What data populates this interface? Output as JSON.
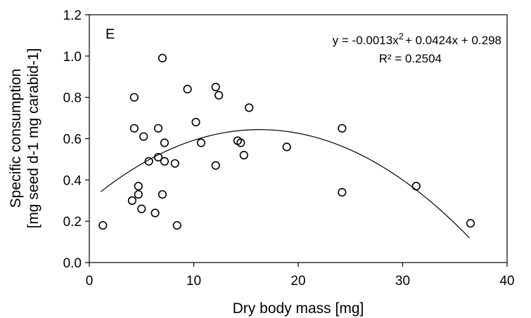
{
  "chart_data": {
    "type": "scatter",
    "panel_label": "E",
    "xlabel": "Dry body mass [mg]",
    "ylabel_line1": "Specific consumption",
    "ylabel_line2": "[mg seed d-1 mg carabid-1]",
    "xlim": [
      0,
      40
    ],
    "ylim": [
      0,
      1.2
    ],
    "xticks": [
      0,
      10,
      20,
      30,
      40
    ],
    "yticks": [
      0.0,
      0.2,
      0.4,
      0.6,
      0.8,
      1.0,
      1.2
    ],
    "xtick_labels": [
      "0",
      "10",
      "20",
      "30",
      "40"
    ],
    "ytick_labels": [
      "0.0",
      "0.2",
      "0.4",
      "0.6",
      "0.8",
      "1.0",
      "1.2"
    ],
    "grid": false,
    "equation_prefix": "y = -0.0013x",
    "equation_exponent": "2",
    "equation_suffix": "+ 0.0424x + 0.298",
    "r_squared": "R² = 0.2504",
    "trendline": {
      "a": -0.0013,
      "b": 0.0424,
      "c": 0.298,
      "x_range": [
        1.1,
        36.4
      ]
    },
    "points": [
      {
        "x": 1.3,
        "y": 0.18
      },
      {
        "x": 4.1,
        "y": 0.3
      },
      {
        "x": 4.3,
        "y": 0.8
      },
      {
        "x": 4.3,
        "y": 0.65
      },
      {
        "x": 4.7,
        "y": 0.33
      },
      {
        "x": 4.7,
        "y": 0.37
      },
      {
        "x": 5.0,
        "y": 0.26
      },
      {
        "x": 5.2,
        "y": 0.61
      },
      {
        "x": 5.7,
        "y": 0.49
      },
      {
        "x": 6.3,
        "y": 0.24
      },
      {
        "x": 6.6,
        "y": 0.65
      },
      {
        "x": 6.6,
        "y": 0.51
      },
      {
        "x": 7.0,
        "y": 0.99
      },
      {
        "x": 7.0,
        "y": 0.33
      },
      {
        "x": 7.2,
        "y": 0.58
      },
      {
        "x": 7.2,
        "y": 0.49
      },
      {
        "x": 8.2,
        "y": 0.48
      },
      {
        "x": 8.4,
        "y": 0.18
      },
      {
        "x": 9.4,
        "y": 0.84
      },
      {
        "x": 10.2,
        "y": 0.68
      },
      {
        "x": 10.7,
        "y": 0.58
      },
      {
        "x": 12.1,
        "y": 0.85
      },
      {
        "x": 12.1,
        "y": 0.47
      },
      {
        "x": 12.4,
        "y": 0.81
      },
      {
        "x": 14.2,
        "y": 0.59
      },
      {
        "x": 14.5,
        "y": 0.58
      },
      {
        "x": 14.8,
        "y": 0.52
      },
      {
        "x": 15.3,
        "y": 0.75
      },
      {
        "x": 18.9,
        "y": 0.56
      },
      {
        "x": 24.2,
        "y": 0.65
      },
      {
        "x": 24.2,
        "y": 0.34
      },
      {
        "x": 31.3,
        "y": 0.37
      },
      {
        "x": 36.5,
        "y": 0.19
      }
    ]
  }
}
